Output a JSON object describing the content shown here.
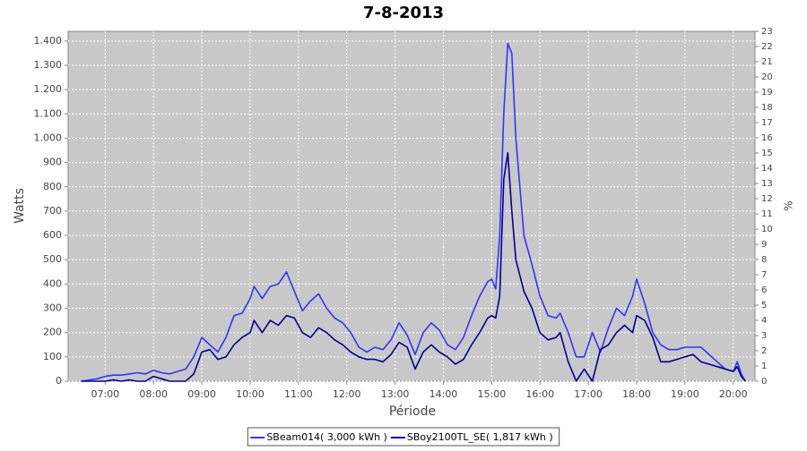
{
  "chart_data": {
    "type": "line",
    "title": "7-8-2013",
    "xlabel": "Période",
    "ylabel": "Watts",
    "y2label": "%",
    "x": [
      "06:30",
      "06:50",
      "07:00",
      "07:10",
      "07:20",
      "07:30",
      "07:40",
      "07:50",
      "08:00",
      "08:10",
      "08:20",
      "08:30",
      "08:40",
      "08:50",
      "09:00",
      "09:10",
      "09:20",
      "09:30",
      "09:40",
      "09:50",
      "10:00",
      "10:05",
      "10:15",
      "10:25",
      "10:35",
      "10:45",
      "10:55",
      "11:05",
      "11:15",
      "11:25",
      "11:35",
      "11:45",
      "11:55",
      "12:05",
      "12:15",
      "12:25",
      "12:35",
      "12:45",
      "12:55",
      "13:05",
      "13:15",
      "13:25",
      "13:35",
      "13:45",
      "13:55",
      "14:05",
      "14:15",
      "14:25",
      "14:35",
      "14:45",
      "14:55",
      "15:00",
      "15:05",
      "15:10",
      "15:15",
      "15:20",
      "15:25",
      "15:30",
      "15:40",
      "15:50",
      "16:00",
      "16:10",
      "16:20",
      "16:25",
      "16:35",
      "16:45",
      "16:55",
      "17:05",
      "17:15",
      "17:25",
      "17:35",
      "17:45",
      "17:55",
      "18:00",
      "18:10",
      "18:20",
      "18:30",
      "18:40",
      "18:50",
      "19:00",
      "19:10",
      "19:20",
      "19:30",
      "19:40",
      "19:50",
      "20:00",
      "20:05",
      "20:10",
      "20:15"
    ],
    "series": [
      {
        "name": "SBeam014( 3,000 kWh )",
        "color": "#3333ff",
        "values": [
          0,
          10,
          20,
          25,
          25,
          30,
          35,
          30,
          45,
          35,
          30,
          40,
          50,
          100,
          180,
          150,
          120,
          180,
          270,
          280,
          340,
          390,
          340,
          390,
          400,
          450,
          370,
          290,
          330,
          360,
          300,
          260,
          240,
          200,
          140,
          120,
          140,
          130,
          170,
          240,
          190,
          110,
          200,
          240,
          210,
          150,
          130,
          180,
          270,
          350,
          410,
          420,
          380,
          600,
          1100,
          1390,
          1350,
          1000,
          600,
          480,
          350,
          270,
          260,
          280,
          200,
          100,
          100,
          200,
          120,
          220,
          300,
          270,
          350,
          420,
          320,
          200,
          150,
          130,
          130,
          140,
          140,
          140,
          110,
          80,
          50,
          40,
          80,
          30,
          0
        ]
      },
      {
        "name": "SBoy2100TL_SE( 1,817 kWh )",
        "color": "#000099",
        "values": [
          0,
          0,
          0,
          5,
          0,
          5,
          0,
          0,
          20,
          10,
          0,
          0,
          0,
          30,
          120,
          130,
          90,
          100,
          150,
          180,
          200,
          250,
          200,
          250,
          230,
          270,
          260,
          200,
          180,
          220,
          200,
          170,
          150,
          120,
          100,
          90,
          90,
          80,
          110,
          160,
          140,
          50,
          120,
          150,
          120,
          100,
          70,
          90,
          150,
          200,
          260,
          270,
          260,
          350,
          830,
          940,
          700,
          500,
          370,
          300,
          200,
          170,
          180,
          200,
          80,
          0,
          50,
          0,
          130,
          150,
          200,
          230,
          200,
          270,
          250,
          180,
          80,
          80,
          90,
          100,
          110,
          80,
          70,
          60,
          50,
          40,
          60,
          20,
          0
        ]
      }
    ],
    "xlim": [
      "06:14",
      "20:27"
    ],
    "xticks": [
      "07:00",
      "08:00",
      "09:00",
      "10:00",
      "11:00",
      "12:00",
      "13:00",
      "14:00",
      "15:00",
      "16:00",
      "17:00",
      "18:00",
      "19:00",
      "20:00"
    ],
    "ylim": [
      0,
      1440
    ],
    "yticks": [
      0,
      100,
      200,
      300,
      400,
      500,
      600,
      700,
      800,
      900,
      {
        "value": 1000,
        "label": "1.000"
      },
      {
        "value": 1100,
        "label": "1.100"
      },
      {
        "value": 1200,
        "label": "1.200"
      },
      {
        "value": 1300,
        "label": "1.300"
      },
      {
        "value": 1400,
        "label": "1.400"
      }
    ],
    "y2lim": [
      0,
      23
    ],
    "y2ticks": [
      0,
      1,
      2,
      3,
      4,
      5,
      6,
      7,
      8,
      9,
      10,
      11,
      12,
      13,
      14,
      15,
      16,
      17,
      18,
      19,
      20,
      21,
      22,
      23
    ],
    "grid": true,
    "legend": "bottom"
  }
}
